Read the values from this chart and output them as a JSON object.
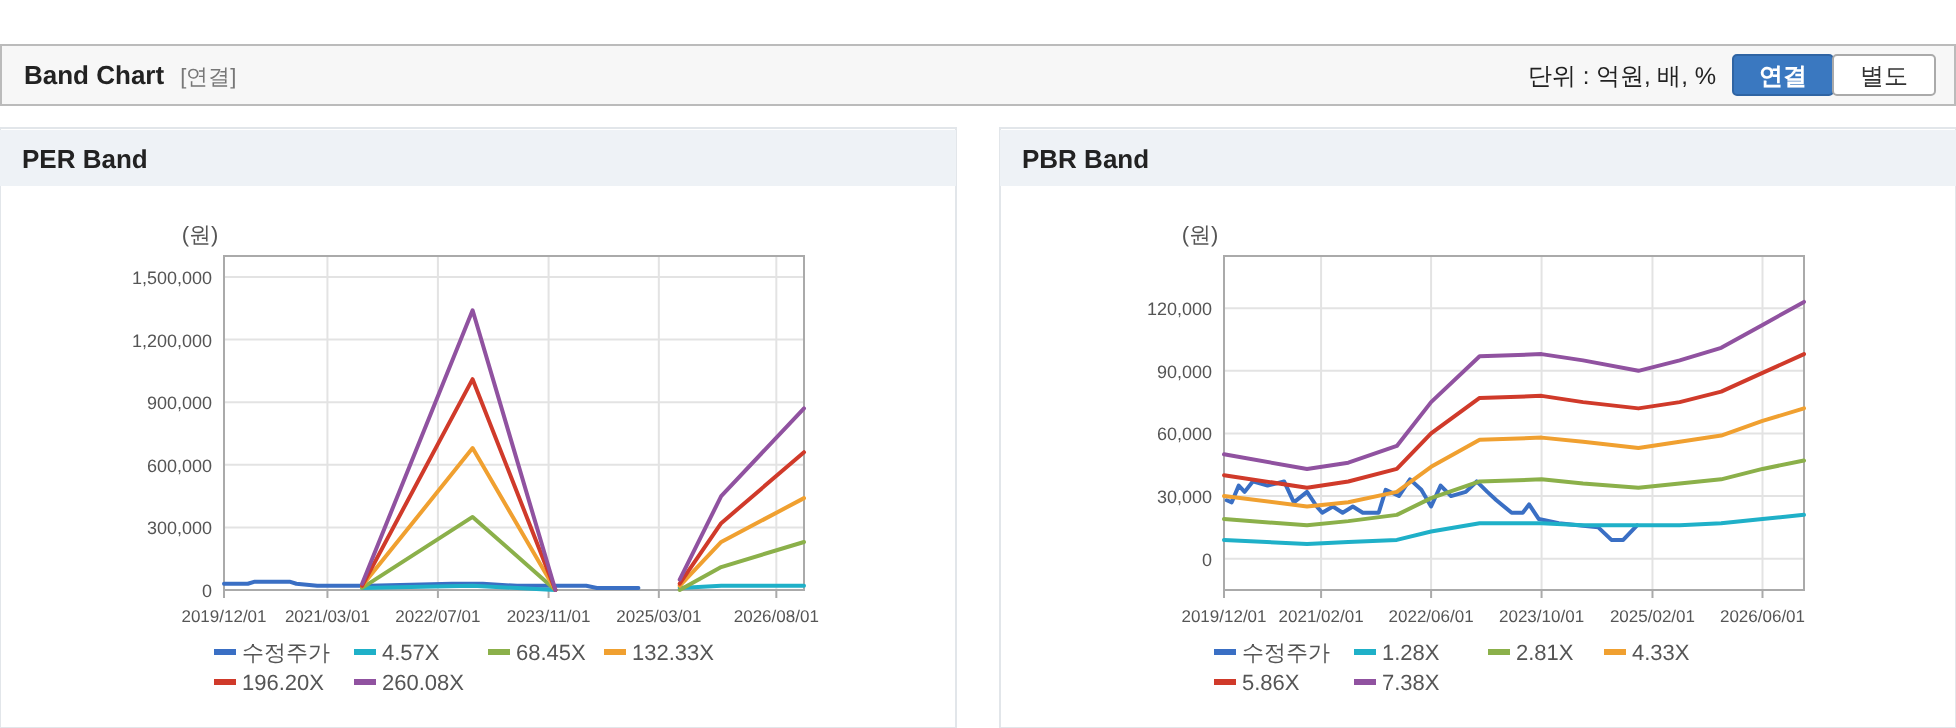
{
  "chart_data": [
    {
      "type": "other",
      "title": "Band Chart",
      "subtitle": "[연결]",
      "annotations": [
        "단위 : 억원, 배, %",
        "연결",
        "별도"
      ]
    },
    {
      "type": "line",
      "title": "PER Band",
      "ylabel": "(원)",
      "xlim": [
        "2019-12",
        "2026-12"
      ],
      "ylim": [
        0,
        1600000
      ],
      "xticks": [
        {
          "value": "2019-12-01",
          "label": "2019/12/01"
        },
        {
          "value": "2021-03-01",
          "label": "2021/03/01"
        },
        {
          "value": "2022-07-01",
          "label": "2022/07/01"
        },
        {
          "value": "2023-11-01",
          "label": "2023/11/01"
        },
        {
          "value": "2025-03-01",
          "label": "2025/03/01"
        },
        {
          "value": "2026-08-01",
          "label": "2026/08/01"
        }
      ],
      "yticks": [
        {
          "value": 0,
          "label": "0"
        },
        {
          "value": 300000,
          "label": "300,000"
        },
        {
          "value": 600000,
          "label": "600,000"
        },
        {
          "value": 900000,
          "label": "900,000"
        },
        {
          "value": 1200000,
          "label": "1,200,000"
        },
        {
          "value": 1500000,
          "label": "1,500,000"
        }
      ],
      "grid": true,
      "legend": "bottom",
      "marker": "none",
      "line_style": "solid",
      "x": [
        "2021-08",
        "2022-12",
        "2023-12",
        "2024-09",
        "2025-06",
        "2025-12",
        "2026-12"
      ],
      "series": [
        {
          "name": "수정주가",
          "color": "#3a6fc4",
          "x": [
            "2019-12-01",
            "2020-03-15",
            "2020-04-15",
            "2020-09-15",
            "2020-10-15",
            "2021-01-15",
            "2021-08-01",
            "2021-09-01",
            "2022-09-01",
            "2023-01-15",
            "2023-06-15",
            "2023-12-15",
            "2024-04-15",
            "2024-06-01",
            "2024-12-01"
          ],
          "values": [
            30000,
            30000,
            40000,
            40000,
            30000,
            20000,
            20000,
            20000,
            30000,
            30000,
            20000,
            20000,
            20000,
            10000,
            10000
          ]
        },
        {
          "name": "4.57X",
          "color": "#1fb0c8",
          "values": [
            10000,
            20000,
            0,
            null,
            10000,
            20000,
            20000
          ]
        },
        {
          "name": "68.45X",
          "color": "#8bb04a",
          "values": [
            10000,
            350000,
            0,
            null,
            0,
            110000,
            230000
          ]
        },
        {
          "name": "132.33X",
          "color": "#f0a030",
          "values": [
            20000,
            680000,
            0,
            null,
            20000,
            230000,
            440000
          ]
        },
        {
          "name": "196.20X",
          "color": "#d03a2a",
          "values": [
            20000,
            1010000,
            0,
            null,
            30000,
            320000,
            660000
          ]
        },
        {
          "name": "260.08X",
          "color": "#9052a0",
          "values": [
            30000,
            1340000,
            0,
            null,
            50000,
            450000,
            870000
          ]
        }
      ]
    },
    {
      "type": "line",
      "title": "PBR Band",
      "ylabel": "(원)",
      "xlim": [
        "2019-12",
        "2026-12"
      ],
      "ylim": [
        -15000,
        145000
      ],
      "xticks": [
        {
          "value": "2019-12-01",
          "label": "2019/12/01"
        },
        {
          "value": "2021-02-01",
          "label": "2021/02/01"
        },
        {
          "value": "2022-06-01",
          "label": "2022/06/01"
        },
        {
          "value": "2023-10-01",
          "label": "2023/10/01"
        },
        {
          "value": "2025-02-01",
          "label": "2025/02/01"
        },
        {
          "value": "2026-06-01",
          "label": "2026/06/01"
        }
      ],
      "yticks": [
        {
          "value": 0,
          "label": "0"
        },
        {
          "value": 30000,
          "label": "30,000"
        },
        {
          "value": 60000,
          "label": "60,000"
        },
        {
          "value": 90000,
          "label": "90,000"
        },
        {
          "value": 120000,
          "label": "120,000"
        }
      ],
      "grid": true,
      "legend": "bottom",
      "marker": "none",
      "line_style": "solid",
      "x": [
        "2019-12",
        "2020-12",
        "2021-06",
        "2022-01",
        "2022-06",
        "2023-01",
        "2023-10",
        "2024-04",
        "2024-12",
        "2025-06",
        "2025-12",
        "2026-06",
        "2026-12"
      ],
      "series": [
        {
          "name": "수정주가",
          "color": "#3a6fc4",
          "x": [
            "2019-12-13",
            "2020-01-04",
            "2020-02-04",
            "2020-03-01",
            "2020-04-06",
            "2020-06-10",
            "2020-08-22",
            "2020-10-04",
            "2020-12-01",
            "2021-01-13",
            "2021-02-06",
            "2021-03-25",
            "2021-05-07",
            "2021-06-21",
            "2021-08-04",
            "2021-10-13",
            "2021-11-13",
            "2022-01-10",
            "2022-02-28",
            "2022-04-19",
            "2022-06-01",
            "2022-07-13",
            "2022-08-28",
            "2022-11-01",
            "2022-12-19",
            "2023-02-04",
            "2023-03-16",
            "2023-05-22",
            "2023-07-10",
            "2023-08-07",
            "2023-09-19",
            "2023-12-16",
            "2024-03-10",
            "2024-06-07",
            "2024-08-04",
            "2024-09-25",
            "2024-11-25"
          ],
          "values": [
            28000,
            27000,
            35000,
            32000,
            37000,
            35000,
            37000,
            27000,
            32000,
            25000,
            22000,
            25000,
            22000,
            25000,
            22000,
            22000,
            33000,
            30000,
            38000,
            33000,
            25000,
            35000,
            30000,
            32000,
            37000,
            32000,
            28000,
            22000,
            22000,
            26000,
            19000,
            17000,
            16000,
            15000,
            9000,
            9000,
            16000
          ]
        },
        {
          "name": "1.28X",
          "color": "#1fb0c8",
          "values": [
            9000,
            7000,
            8000,
            9000,
            13000,
            17000,
            17000,
            16000,
            16000,
            16000,
            17000,
            19000,
            21000
          ]
        },
        {
          "name": "2.81X",
          "color": "#8bb04a",
          "values": [
            19000,
            16000,
            18000,
            21000,
            29000,
            37000,
            38000,
            36000,
            34000,
            36000,
            38000,
            43000,
            47000
          ]
        },
        {
          "name": "4.33X",
          "color": "#f0a030",
          "values": [
            30000,
            25000,
            27000,
            32000,
            44000,
            57000,
            58000,
            56000,
            53000,
            56000,
            59000,
            66000,
            72000
          ]
        },
        {
          "name": "5.86X",
          "color": "#d03a2a",
          "values": [
            40000,
            34000,
            37000,
            43000,
            60000,
            77000,
            78000,
            75000,
            72000,
            75000,
            80000,
            89000,
            98000
          ]
        },
        {
          "name": "7.38X",
          "color": "#9052a0",
          "values": [
            50000,
            43000,
            46000,
            54000,
            75000,
            97000,
            98000,
            95000,
            90000,
            95000,
            101000,
            112000,
            123000
          ]
        }
      ]
    }
  ]
}
